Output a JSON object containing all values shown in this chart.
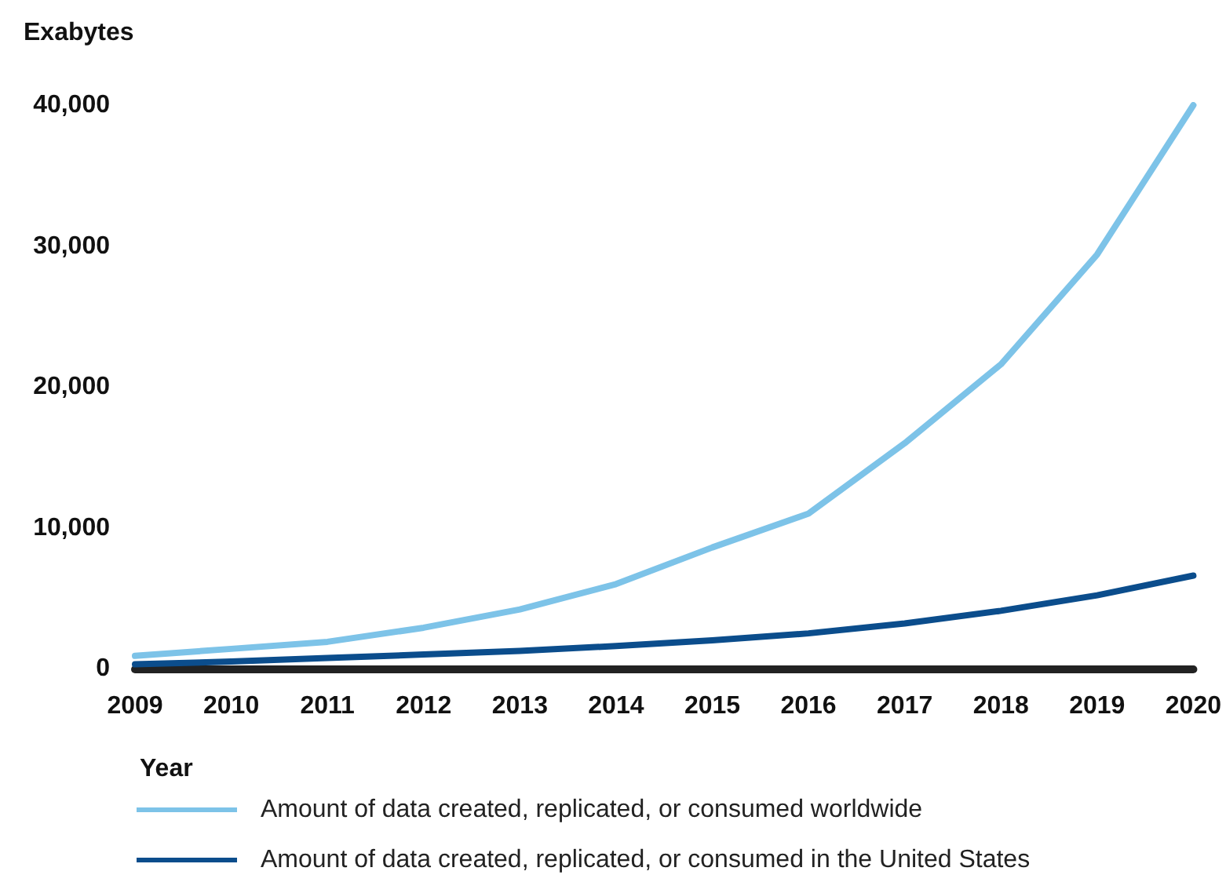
{
  "chart_data": {
    "type": "line",
    "ylabel": "Exabytes",
    "xlabel": "Year",
    "categories": [
      "2009",
      "2010",
      "2011",
      "2012",
      "2013",
      "2014",
      "2015",
      "2016",
      "2017",
      "2018",
      "2019",
      "2020"
    ],
    "series": [
      {
        "name": "Amount of data created, replicated, or consumed worldwide",
        "color": "#7dc3e8",
        "values": [
          900,
          1400,
          1900,
          2900,
          4200,
          6000,
          8600,
          11000,
          16000,
          21600,
          29400,
          40000
        ]
      },
      {
        "name": "Amount of data created, replicated, or consumed in the United States",
        "color": "#0b4d8c",
        "values": [
          300,
          500,
          750,
          1000,
          1250,
          1600,
          2000,
          2500,
          3200,
          4100,
          5200,
          6600
        ]
      }
    ],
    "ylim": [
      0,
      40000
    ],
    "yticks": [
      {
        "value": 0,
        "label": "0"
      },
      {
        "value": 10000,
        "label": "10,000"
      },
      {
        "value": 20000,
        "label": "20,000"
      },
      {
        "value": 30000,
        "label": "30,000"
      },
      {
        "value": 40000,
        "label": "40,000"
      }
    ],
    "grid": false,
    "legend": "bottom",
    "marker": "none",
    "line_style": "solid"
  }
}
